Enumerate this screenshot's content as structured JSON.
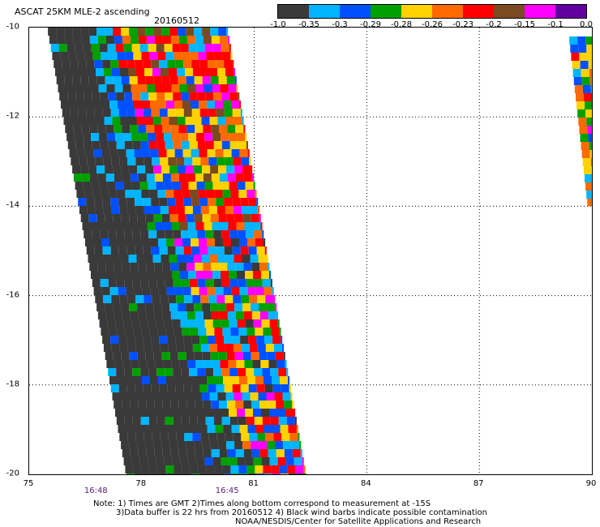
{
  "header": {
    "title": "ASCAT 25KM MLE-2 ascending",
    "date": "20160512"
  },
  "colorbar": {
    "colors": [
      "#3a3a3a",
      "#00b4ff",
      "#0050ff",
      "#00a000",
      "#ffd200",
      "#ff6a00",
      "#ff0000",
      "#7a4a20",
      "#ff00ff",
      "#6000a0"
    ],
    "labels": [
      "-1.0",
      "-0.35",
      "-0.3",
      "-0.29",
      "-0.28",
      "-0.26",
      "-0.23",
      "-0.2",
      "-0.15",
      "-0.1",
      "0.0"
    ]
  },
  "axes": {
    "x_ticks": [
      "75",
      "78",
      "81",
      "84",
      "87",
      "90"
    ],
    "y_ticks": [
      "-10",
      "-12",
      "-14",
      "-16",
      "-18",
      "-20"
    ],
    "xlim": [
      75,
      90
    ],
    "ylim": [
      -20,
      -10
    ]
  },
  "time_labels": [
    {
      "text": "16:48",
      "lon": 76.8
    },
    {
      "text": "16:45",
      "lon": 80.3
    }
  ],
  "notes": {
    "line1": "Note: 1) Times are GMT 2)Times along bottom correspond to measurement at -15S",
    "line2": "3)Data buffer is 22 hrs from 20160512 4) Black wind barbs indicate possible contamination",
    "line3": "NOAA/NESDIS/Center for Satellite Applications and Research"
  },
  "map_data": {
    "type": "heatmap",
    "swaths": [
      {
        "name": "main",
        "lat_top": -10,
        "lat_bottom": -20,
        "west_top": 75.5,
        "west_bottom": 77.6,
        "east_top": 80.3,
        "east_bottom": 82.4
      },
      {
        "name": "east",
        "lat_top": -10.2,
        "lat_bottom": -14,
        "west_top": 89.4,
        "west_bottom": 89.9,
        "east_top": 90,
        "east_bottom": 90
      }
    ]
  }
}
